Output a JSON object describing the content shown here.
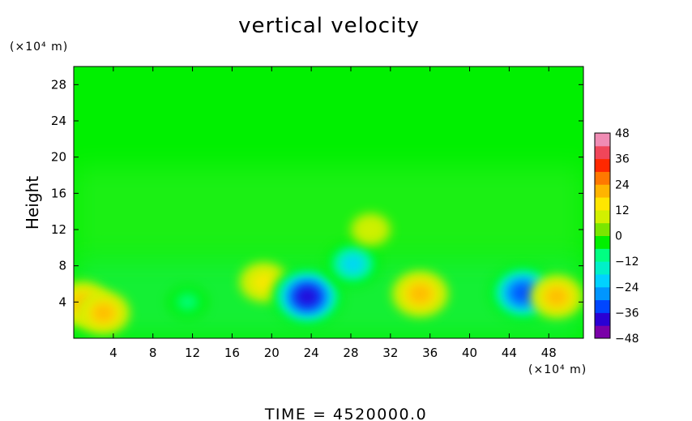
{
  "chart_data": {
    "type": "heatmap",
    "title": "vertical velocity",
    "ylabel": "Height",
    "x_unit_label": "(×10⁴ m)",
    "y_unit_label": "(×10⁴ m)",
    "time_label": "TIME  =  4520000.0",
    "xlim": [
      0,
      51.5
    ],
    "ylim": [
      0,
      30
    ],
    "x_ticks": [
      "4",
      "8",
      "12",
      "16",
      "20",
      "24",
      "28",
      "32",
      "36",
      "40",
      "44",
      "48"
    ],
    "y_ticks": [
      "4",
      "8",
      "12",
      "16",
      "20",
      "24",
      "28"
    ],
    "colorbar": {
      "min": -48,
      "max": 48,
      "tick_labels": [
        "48",
        "36",
        "24",
        "12",
        "0",
        "−12",
        "−24",
        "−36",
        "−48"
      ],
      "tick_values": [
        48,
        36,
        24,
        12,
        0,
        -12,
        -24,
        -36,
        -48
      ],
      "colors": [
        "#7a00a8",
        "#2a00d4",
        "#0046ff",
        "#0096ff",
        "#00d2ff",
        "#00f0c8",
        "#00ff82",
        "#00f000",
        "#7ae600",
        "#d2f000",
        "#ffe600",
        "#ffb400",
        "#ff7800",
        "#ff2800",
        "#f0465a",
        "#f08cb4"
      ]
    },
    "background_value": 0,
    "features": [
      {
        "x": 0.9,
        "y": 3.8,
        "value": 24
      },
      {
        "x": 3.0,
        "y": 2.8,
        "value": 22
      },
      {
        "x": 19.2,
        "y": 6.2,
        "value": 18
      },
      {
        "x": 23.6,
        "y": 4.6,
        "value": -42
      },
      {
        "x": 28.2,
        "y": 8.2,
        "value": -24
      },
      {
        "x": 35.0,
        "y": 4.9,
        "value": 26
      },
      {
        "x": 45.4,
        "y": 5.0,
        "value": -38
      },
      {
        "x": 48.8,
        "y": 4.6,
        "value": 22
      },
      {
        "x": 11.5,
        "y": 4.0,
        "value": -8
      },
      {
        "x": 30.0,
        "y": 12.0,
        "value": 8
      }
    ]
  }
}
